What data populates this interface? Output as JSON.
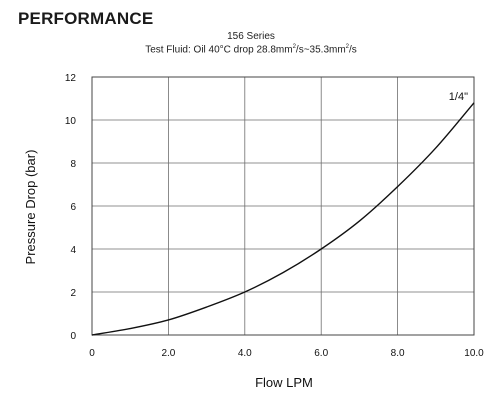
{
  "header": {
    "title": "PERFORMANCE",
    "series_name": "156 Series",
    "fluid_prefix": "Test Fluid: Oil 40°C drop 28.8mm",
    "fluid_unit_exp_1": "2",
    "fluid_mid": "/s~35.3mm",
    "fluid_unit_exp_2": "2",
    "fluid_suffix": "/s"
  },
  "chart_data": {
    "type": "line",
    "xlabel": "Flow LPM",
    "ylabel": "Pressure Drop (bar)",
    "xlim": [
      0,
      10
    ],
    "ylim": [
      0,
      12
    ],
    "x_ticks": [
      "0",
      "2.0",
      "4.0",
      "6.0",
      "8.0",
      "10.0"
    ],
    "y_ticks": [
      "0",
      "2",
      "4",
      "6",
      "8",
      "10",
      "12"
    ],
    "grid": true,
    "series": [
      {
        "name": "1/4\"",
        "color": "#111111",
        "x": [
          0,
          1,
          2,
          3,
          4,
          5,
          6,
          7,
          8,
          9,
          10
        ],
        "y": [
          0,
          0.3,
          0.7,
          1.3,
          2.0,
          2.9,
          4.0,
          5.3,
          6.9,
          8.7,
          10.8
        ]
      }
    ]
  }
}
